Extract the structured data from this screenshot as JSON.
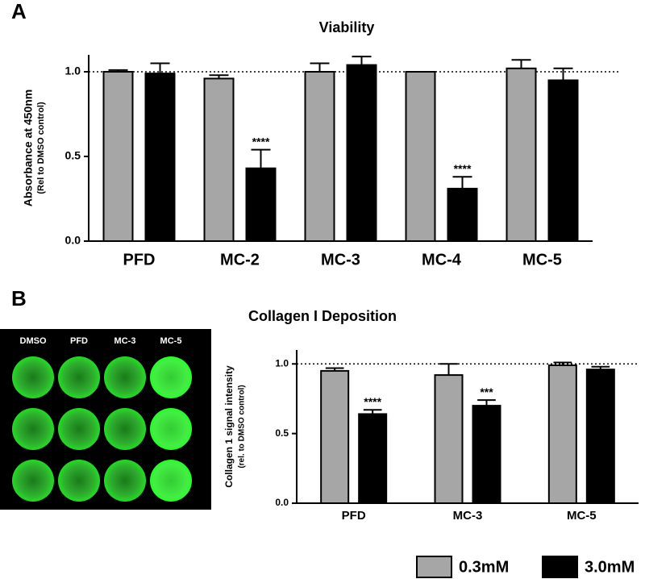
{
  "panel_labels": [
    "A",
    "B"
  ],
  "plate_image": {
    "columns": [
      "DMSO",
      "PFD",
      "MC-3",
      "MC-5"
    ]
  },
  "chart_data": [
    {
      "type": "bar",
      "title": "Viability",
      "y_label": "Absorbance at 450nm",
      "y_label_note": "(Rel to DMSO control)",
      "categories": [
        "PFD",
        "MC-2",
        "MC-3",
        "MC-4",
        "MC-5"
      ],
      "series": [
        {
          "name": "0.3mM",
          "color": "#a6a6a6",
          "values": [
            1.0,
            0.96,
            1.0,
            1.0,
            1.02
          ],
          "errors": [
            0.01,
            0.02,
            0.05,
            0.0,
            0.05
          ]
        },
        {
          "name": "3.0mM",
          "color": "#000000",
          "values": [
            0.99,
            0.43,
            1.04,
            0.31,
            0.95
          ],
          "errors": [
            0.06,
            0.11,
            0.05,
            0.07,
            0.07
          ]
        }
      ],
      "annotations": [
        {
          "text": "****",
          "series": 1,
          "category": 1
        },
        {
          "text": "****",
          "series": 1,
          "category": 3
        }
      ],
      "reference_line": 1.0,
      "ylim": [
        0,
        1.1
      ],
      "yticks": [
        {
          "value": 0,
          "label": "0.0"
        },
        {
          "value": 0.5,
          "label": "0.5"
        },
        {
          "value": 1,
          "label": "1.0"
        }
      ]
    },
    {
      "type": "bar",
      "title": "Collagen I Deposition",
      "y_label": "Collagen 1 signal intensity",
      "y_label_note": "(rel. to DMSO control)",
      "categories": [
        "PFD",
        "MC-3",
        "MC-5"
      ],
      "series": [
        {
          "color": "#a6a6a6",
          "values": [
            0.95,
            0.92,
            0.99
          ],
          "errors": [
            0.02,
            0.08,
            0.02
          ]
        },
        {
          "color": "#000000",
          "values": [
            0.64,
            0.7,
            0.96
          ],
          "errors": [
            0.03,
            0.04,
            0.02
          ]
        }
      ],
      "annotations": [
        {
          "text": "****",
          "series": 1,
          "category": 0
        },
        {
          "text": "***",
          "series": 1,
          "category": 1
        }
      ],
      "reference_line": 1.0,
      "ylim": [
        0,
        1.1
      ],
      "yticks": [
        {
          "value": 0,
          "label": "0.0"
        },
        {
          "value": 0.5,
          "label": "0.5"
        },
        {
          "value": 1,
          "label": "1.0"
        }
      ]
    }
  ]
}
